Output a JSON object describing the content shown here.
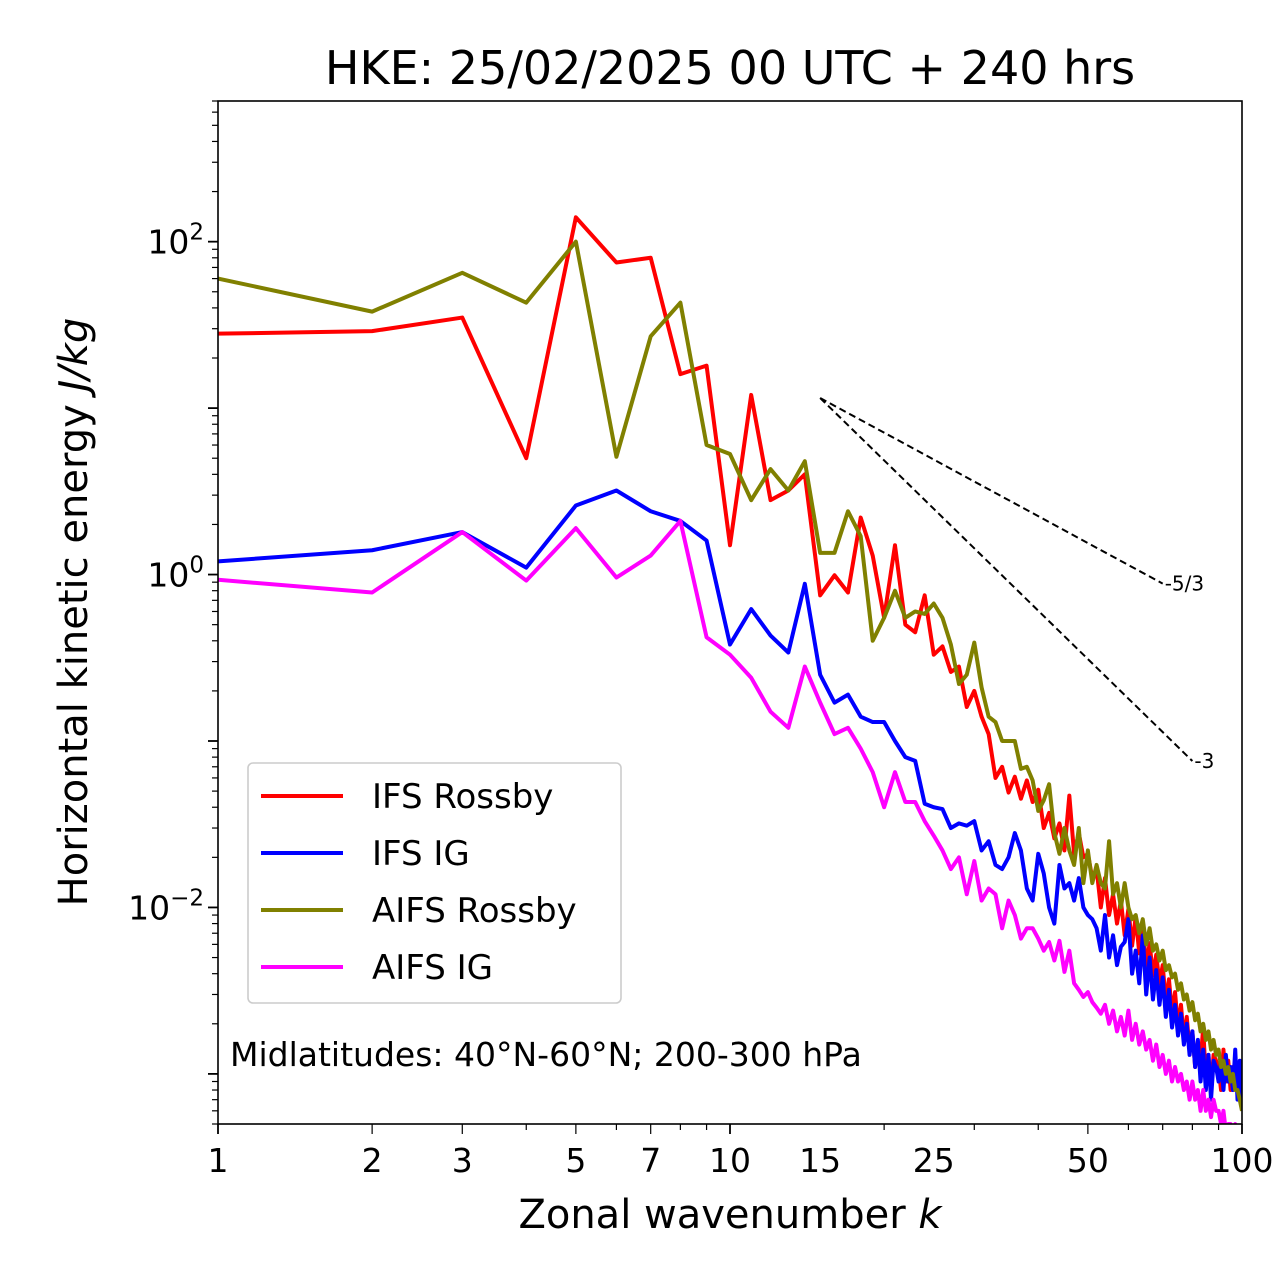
{
  "chart_data": {
    "type": "line",
    "title": "HKE: 25/02/2025 00 UTC + 240 hrs",
    "xlabel": "Zonal wavenumber",
    "xlabel_var": "k",
    "ylabel": "Horizontal kinetic energy",
    "ylabel_unit": "J/kg",
    "xscale": "log",
    "yscale": "log",
    "xlim": [
      1,
      100
    ],
    "ylim": [
      0.0005,
      700
    ],
    "x_ticks": [
      {
        "value": 1,
        "label": "1"
      },
      {
        "value": 2,
        "label": "2"
      },
      {
        "value": 3,
        "label": "3"
      },
      {
        "value": 5,
        "label": "5"
      },
      {
        "value": 7,
        "label": "7"
      },
      {
        "value": 10,
        "label": "10"
      },
      {
        "value": 15,
        "label": "15"
      },
      {
        "value": 25,
        "label": "25"
      },
      {
        "value": 50,
        "label": "50"
      },
      {
        "value": 100,
        "label": "100"
      }
    ],
    "y_ticks": [
      {
        "value": 0.01,
        "base": "10",
        "exp": "−2"
      },
      {
        "value": 1,
        "base": "10",
        "exp": "0"
      },
      {
        "value": 100,
        "base": "10",
        "exp": "2"
      }
    ],
    "legend_position": "lower-left",
    "grid": false,
    "annotation": "Midlatitudes: 40°N-60°N; 200-300 hPa",
    "reference_slopes": [
      {
        "label": "-5/3",
        "slope": -1.6667,
        "x": [
          15,
          70
        ],
        "y0": 11.5
      },
      {
        "label": "-3",
        "slope": -3,
        "x": [
          15,
          80
        ],
        "y0": 11.5
      }
    ],
    "series": [
      {
        "name": "IFS Rossby",
        "color": "#ff0000",
        "x": [
          1,
          2,
          3,
          4,
          5,
          6,
          7,
          8,
          9,
          10,
          11,
          12,
          13,
          14,
          15,
          16,
          17,
          18,
          19,
          20,
          21,
          22,
          23,
          24,
          25,
          26,
          27,
          28,
          29,
          30,
          31,
          32,
          33,
          34,
          35,
          36,
          37,
          38,
          39,
          40,
          41,
          42,
          43,
          44,
          45,
          46,
          47,
          48,
          49,
          50,
          51,
          52,
          53,
          54,
          55,
          56,
          57,
          58,
          59,
          60,
          61,
          62,
          63,
          64,
          65,
          66,
          67,
          68,
          69,
          70,
          71,
          72,
          73,
          74,
          75,
          76,
          77,
          78,
          79,
          80,
          81,
          82,
          83,
          84,
          85,
          86,
          87,
          88,
          89,
          90,
          91,
          92,
          93,
          94,
          95,
          96,
          97,
          98,
          99,
          100
        ],
        "y": [
          28,
          29,
          35,
          5,
          140,
          75,
          80,
          16,
          18,
          1.5,
          12,
          2.8,
          3.2,
          4,
          0.75,
          0.99,
          0.78,
          2.2,
          1.3,
          0.55,
          1.5,
          0.5,
          0.45,
          0.75,
          0.33,
          0.37,
          0.26,
          0.28,
          0.16,
          0.2,
          0.14,
          0.11,
          0.06,
          0.07,
          0.049,
          0.061,
          0.045,
          0.058,
          0.043,
          0.051,
          0.03,
          0.037,
          0.026,
          0.032,
          0.022,
          0.047,
          0.021,
          0.028,
          0.02,
          0.021,
          0.015,
          0.017,
          0.01,
          0.015,
          0.009,
          0.012,
          0.008,
          0.011,
          0.0068,
          0.0098,
          0.0059,
          0.0088,
          0.0053,
          0.0078,
          0.0044,
          0.0061,
          0.0039,
          0.0052,
          0.0035,
          0.0045,
          0.0027,
          0.0037,
          0.0023,
          0.0031,
          0.0019,
          0.0026,
          0.0016,
          0.0022,
          0.0014,
          0.0018,
          0.0011,
          0.0015,
          0.0012,
          0.0019,
          0.0009,
          0.0013,
          0.0008,
          0.0013,
          0.0012,
          0.0011,
          0.0008,
          0.0014,
          0.0009,
          0.0012,
          0.0008,
          0.0011,
          0.0009,
          0.0011,
          0.0009,
          0.001
        ]
      },
      {
        "name": "IFS IG",
        "color": "#0000ff",
        "x": [
          1,
          2,
          3,
          4,
          5,
          6,
          7,
          8,
          9,
          10,
          11,
          12,
          13,
          14,
          15,
          16,
          17,
          18,
          19,
          20,
          21,
          22,
          23,
          24,
          25,
          26,
          27,
          28,
          29,
          30,
          31,
          32,
          33,
          34,
          35,
          36,
          37,
          38,
          39,
          40,
          41,
          42,
          43,
          44,
          45,
          46,
          47,
          48,
          49,
          50,
          51,
          52,
          53,
          54,
          55,
          56,
          57,
          58,
          59,
          60,
          61,
          62,
          63,
          64,
          65,
          66,
          67,
          68,
          69,
          70,
          71,
          72,
          73,
          74,
          75,
          76,
          77,
          78,
          79,
          80,
          81,
          82,
          83,
          84,
          85,
          86,
          87,
          88,
          89,
          90,
          91,
          92,
          93,
          94,
          95,
          96,
          97,
          98,
          99,
          100
        ],
        "y": [
          1.2,
          1.4,
          1.8,
          1.1,
          2.6,
          3.2,
          2.4,
          2.1,
          1.6,
          0.38,
          0.62,
          0.43,
          0.34,
          0.88,
          0.25,
          0.17,
          0.19,
          0.14,
          0.13,
          0.13,
          0.1,
          0.08,
          0.076,
          0.042,
          0.04,
          0.039,
          0.03,
          0.032,
          0.031,
          0.033,
          0.022,
          0.025,
          0.018,
          0.017,
          0.02,
          0.028,
          0.022,
          0.013,
          0.011,
          0.021,
          0.016,
          0.01,
          0.008,
          0.018,
          0.013,
          0.014,
          0.011,
          0.015,
          0.01,
          0.009,
          0.0085,
          0.0075,
          0.0055,
          0.009,
          0.005,
          0.0068,
          0.0045,
          0.0058,
          0.0062,
          0.0085,
          0.004,
          0.0055,
          0.0035,
          0.0068,
          0.003,
          0.005,
          0.0028,
          0.0042,
          0.0026,
          0.0038,
          0.0022,
          0.0032,
          0.0019,
          0.0026,
          0.0017,
          0.0023,
          0.0015,
          0.002,
          0.0013,
          0.0018,
          0.0011,
          0.0016,
          0.0009,
          0.0014,
          0.0008,
          0.0013,
          0.0007,
          0.0012,
          0.0011,
          0.0009,
          0.0012,
          0.0008,
          0.0013,
          0.0009,
          0.0011,
          0.0008,
          0.0014,
          0.0007,
          0.0012,
          0.0006
        ]
      },
      {
        "name": "AIFS Rossby",
        "color": "#808000",
        "x": [
          1,
          2,
          3,
          4,
          5,
          6,
          7,
          8,
          9,
          10,
          11,
          12,
          13,
          14,
          15,
          16,
          17,
          18,
          19,
          20,
          21,
          22,
          23,
          24,
          25,
          26,
          27,
          28,
          29,
          30,
          31,
          32,
          33,
          34,
          35,
          36,
          37,
          38,
          39,
          40,
          41,
          42,
          43,
          44,
          45,
          46,
          47,
          48,
          49,
          50,
          51,
          52,
          53,
          54,
          55,
          56,
          57,
          58,
          59,
          60,
          61,
          62,
          63,
          64,
          65,
          66,
          67,
          68,
          69,
          70,
          71,
          72,
          73,
          74,
          75,
          76,
          77,
          78,
          79,
          80,
          81,
          82,
          83,
          84,
          85,
          86,
          87,
          88,
          89,
          90,
          91,
          92,
          93,
          94,
          95,
          96,
          97,
          98,
          99,
          100
        ],
        "y": [
          60,
          38,
          65,
          43,
          100,
          5.1,
          27,
          43,
          6,
          5.3,
          2.8,
          4.3,
          3.2,
          4.8,
          1.35,
          1.35,
          2.4,
          1.7,
          0.4,
          0.55,
          0.8,
          0.55,
          0.6,
          0.58,
          0.67,
          0.55,
          0.38,
          0.22,
          0.25,
          0.39,
          0.21,
          0.14,
          0.13,
          0.1,
          0.1,
          0.1,
          0.068,
          0.07,
          0.058,
          0.038,
          0.044,
          0.055,
          0.028,
          0.021,
          0.03,
          0.022,
          0.018,
          0.03,
          0.014,
          0.022,
          0.014,
          0.018,
          0.014,
          0.013,
          0.025,
          0.012,
          0.014,
          0.01,
          0.014,
          0.01,
          0.0085,
          0.009,
          0.007,
          0.0085,
          0.006,
          0.0075,
          0.0055,
          0.006,
          0.0048,
          0.0055,
          0.0042,
          0.0045,
          0.0038,
          0.004,
          0.0032,
          0.0035,
          0.0028,
          0.003,
          0.0024,
          0.0027,
          0.0021,
          0.0023,
          0.0018,
          0.002,
          0.0016,
          0.0018,
          0.0014,
          0.0016,
          0.0013,
          0.0014,
          0.0011,
          0.0012,
          0.001,
          0.0011,
          0.0009,
          0.001,
          0.0008,
          0.0008,
          0.0007,
          0.0006
        ]
      },
      {
        "name": "AIFS IG",
        "color": "#ff00ff",
        "x": [
          1,
          2,
          3,
          4,
          5,
          6,
          7,
          8,
          9,
          10,
          11,
          12,
          13,
          14,
          15,
          16,
          17,
          18,
          19,
          20,
          21,
          22,
          23,
          24,
          25,
          26,
          27,
          28,
          29,
          30,
          31,
          32,
          33,
          34,
          35,
          36,
          37,
          38,
          39,
          40,
          41,
          42,
          43,
          44,
          45,
          46,
          47,
          48,
          49,
          50,
          51,
          52,
          53,
          54,
          55,
          56,
          57,
          58,
          59,
          60,
          61,
          62,
          63,
          64,
          65,
          66,
          67,
          68,
          69,
          70,
          71,
          72,
          73,
          74,
          75,
          76,
          77,
          78,
          79,
          80,
          81,
          82,
          83,
          84,
          85,
          86,
          87,
          88,
          89,
          90,
          91,
          92,
          93,
          94,
          95,
          96,
          97,
          98,
          99,
          100
        ],
        "y": [
          0.93,
          0.78,
          1.8,
          0.92,
          1.9,
          0.96,
          1.3,
          2.1,
          0.42,
          0.33,
          0.24,
          0.15,
          0.12,
          0.28,
          0.17,
          0.11,
          0.12,
          0.09,
          0.065,
          0.04,
          0.065,
          0.043,
          0.043,
          0.033,
          0.027,
          0.022,
          0.017,
          0.02,
          0.012,
          0.019,
          0.011,
          0.013,
          0.012,
          0.0075,
          0.011,
          0.009,
          0.0065,
          0.0075,
          0.0075,
          0.0065,
          0.0055,
          0.0062,
          0.0048,
          0.0063,
          0.0041,
          0.0055,
          0.0035,
          0.0032,
          0.0029,
          0.0031,
          0.0027,
          0.0025,
          0.0023,
          0.0026,
          0.002,
          0.0024,
          0.0018,
          0.0022,
          0.0017,
          0.0024,
          0.0016,
          0.002,
          0.0015,
          0.0018,
          0.0014,
          0.0016,
          0.0012,
          0.0015,
          0.0011,
          0.0013,
          0.001,
          0.0012,
          0.0009,
          0.0011,
          0.0009,
          0.001,
          0.0008,
          0.0009,
          0.0007,
          0.0009,
          0.0007,
          0.0008,
          0.0006,
          0.0008,
          0.0006,
          0.0007,
          0.00055,
          0.0007,
          0.0006,
          0.0006,
          0.0005,
          0.0006,
          0.00045,
          0.0005,
          0.0005,
          0.00045,
          0.0005,
          0.0004,
          0.00045,
          0.0004
        ]
      }
    ]
  }
}
